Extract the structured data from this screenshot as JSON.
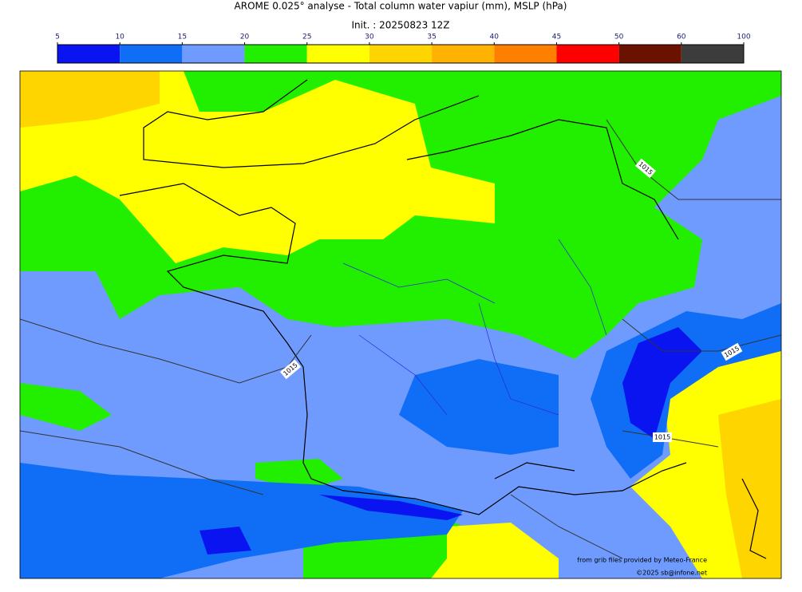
{
  "header": {
    "title": "AROME 0.025° analyse - Total column water vapiur (mm), MSLP (hPa)",
    "subtitle": "Init. : 20250823 12Z"
  },
  "colorbar": {
    "ticks": [
      5,
      10,
      15,
      20,
      25,
      30,
      35,
      40,
      45,
      50,
      60,
      100
    ],
    "colors": [
      "#0a14f0",
      "#0f6ef5",
      "#6f9bff",
      "#22ee00",
      "#ffff00",
      "#ffd500",
      "#ffb200",
      "#ff8000",
      "#ff0000",
      "#6b1100",
      "#3c3c3c"
    ]
  },
  "map": {
    "isobar_labels": [
      1015,
      1015,
      1015,
      1015
    ],
    "credits": [
      "from grib files provided by Meteo-France",
      "©2025 sb@infone.net"
    ]
  }
}
